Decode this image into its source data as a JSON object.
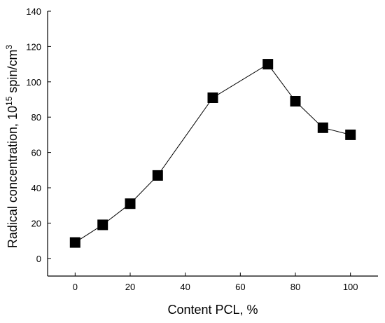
{
  "chart_data": {
    "type": "line",
    "title": "",
    "xlabel": "Content PCL, %",
    "ylabel": {
      "prefix": "Radical concentration, 10",
      "sup1": "15",
      "middle": " spin/cm",
      "sup2": "3"
    },
    "xlim": [
      -10,
      110
    ],
    "ylim": [
      -10,
      140
    ],
    "xticks": [
      0,
      20,
      40,
      60,
      80,
      100
    ],
    "yticks": [
      0,
      20,
      40,
      60,
      80,
      100,
      120,
      140
    ],
    "grid": false,
    "marker": "square",
    "colors": {
      "line": "#000000",
      "marker": "#000000"
    },
    "series": [
      {
        "x": [
          0,
          10,
          20,
          30,
          50,
          70,
          80,
          90,
          100
        ],
        "y": [
          9,
          19,
          31,
          47,
          91,
          110,
          89,
          74,
          70
        ]
      }
    ]
  }
}
